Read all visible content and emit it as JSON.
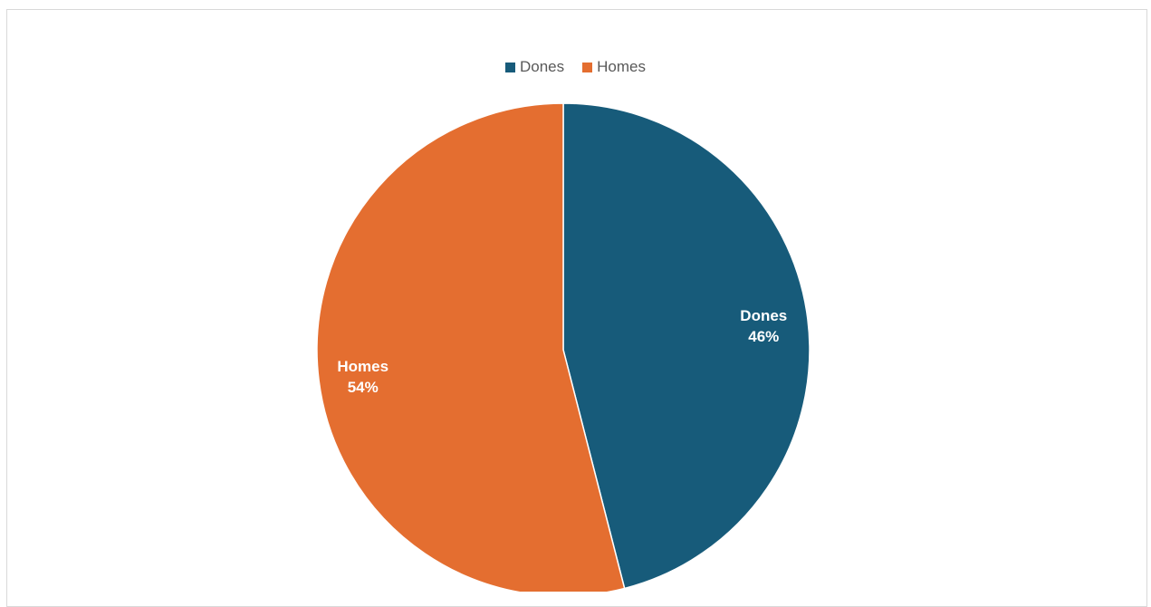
{
  "chart_data": {
    "type": "pie",
    "title": "",
    "legend_position": "top",
    "slices": [
      {
        "label": "Dones",
        "value": 46,
        "percent_label": "46%",
        "color": "#175B7A"
      },
      {
        "label": "Homes",
        "value": 54,
        "percent_label": "54%",
        "color": "#E46E30"
      }
    ]
  }
}
